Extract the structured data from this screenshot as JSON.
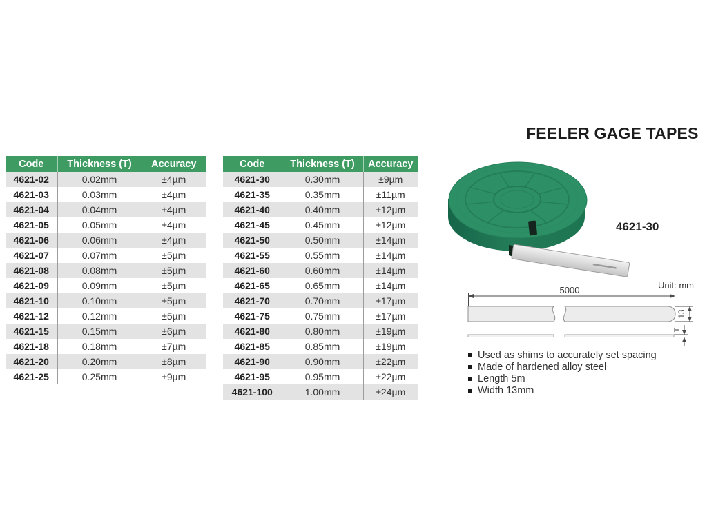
{
  "page_title": "FEELER GAGE TAPES",
  "tables": [
    {
      "headers": [
        "Code",
        "Thickness (T)",
        "Accuracy"
      ],
      "rows": [
        [
          "4621-02",
          "0.02mm",
          "±4µm"
        ],
        [
          "4621-03",
          "0.03mm",
          "±4µm"
        ],
        [
          "4621-04",
          "0.04mm",
          "±4µm"
        ],
        [
          "4621-05",
          "0.05mm",
          "±4µm"
        ],
        [
          "4621-06",
          "0.06mm",
          "±4µm"
        ],
        [
          "4621-07",
          "0.07mm",
          "±5µm"
        ],
        [
          "4621-08",
          "0.08mm",
          "±5µm"
        ],
        [
          "4621-09",
          "0.09mm",
          "±5µm"
        ],
        [
          "4621-10",
          "0.10mm",
          "±5µm"
        ],
        [
          "4621-12",
          "0.12mm",
          "±5µm"
        ],
        [
          "4621-15",
          "0.15mm",
          "±6µm"
        ],
        [
          "4621-18",
          "0.18mm",
          "±7µm"
        ],
        [
          "4621-20",
          "0.20mm",
          "±8µm"
        ],
        [
          "4621-25",
          "0.25mm",
          "±9µm"
        ]
      ]
    },
    {
      "headers": [
        "Code",
        "Thickness (T)",
        "Accuracy"
      ],
      "rows": [
        [
          "4621-30",
          "0.30mm",
          "±9µm"
        ],
        [
          "4621-35",
          "0.35mm",
          "±11µm"
        ],
        [
          "4621-40",
          "0.40mm",
          "±12µm"
        ],
        [
          "4621-45",
          "0.45mm",
          "±12µm"
        ],
        [
          "4621-50",
          "0.50mm",
          "±14µm"
        ],
        [
          "4621-55",
          "0.55mm",
          "±14µm"
        ],
        [
          "4621-60",
          "0.60mm",
          "±14µm"
        ],
        [
          "4621-65",
          "0.65mm",
          "±14µm"
        ],
        [
          "4621-70",
          "0.70mm",
          "±17µm"
        ],
        [
          "4621-75",
          "0.75mm",
          "±17µm"
        ],
        [
          "4621-80",
          "0.80mm",
          "±19µm"
        ],
        [
          "4621-85",
          "0.85mm",
          "±19µm"
        ],
        [
          "4621-90",
          "0.90mm",
          "±22µm"
        ],
        [
          "4621-95",
          "0.95mm",
          "±22µm"
        ],
        [
          "4621-100",
          "1.00mm",
          "±24µm"
        ]
      ]
    }
  ],
  "product": {
    "code_label": "4621-30"
  },
  "diagram": {
    "unit_label": "Unit: mm",
    "length_value": "5000",
    "width_value": "13",
    "thickness_value": "T"
  },
  "features": [
    "Used as shims to accurately set spacing",
    "Made of hardened alloy steel",
    "Length 5m",
    "Width 13mm"
  ],
  "colors": {
    "header_green": "#3e9b62",
    "row_alt": "#e3e3e3",
    "reel_green": "#2d8f66"
  }
}
